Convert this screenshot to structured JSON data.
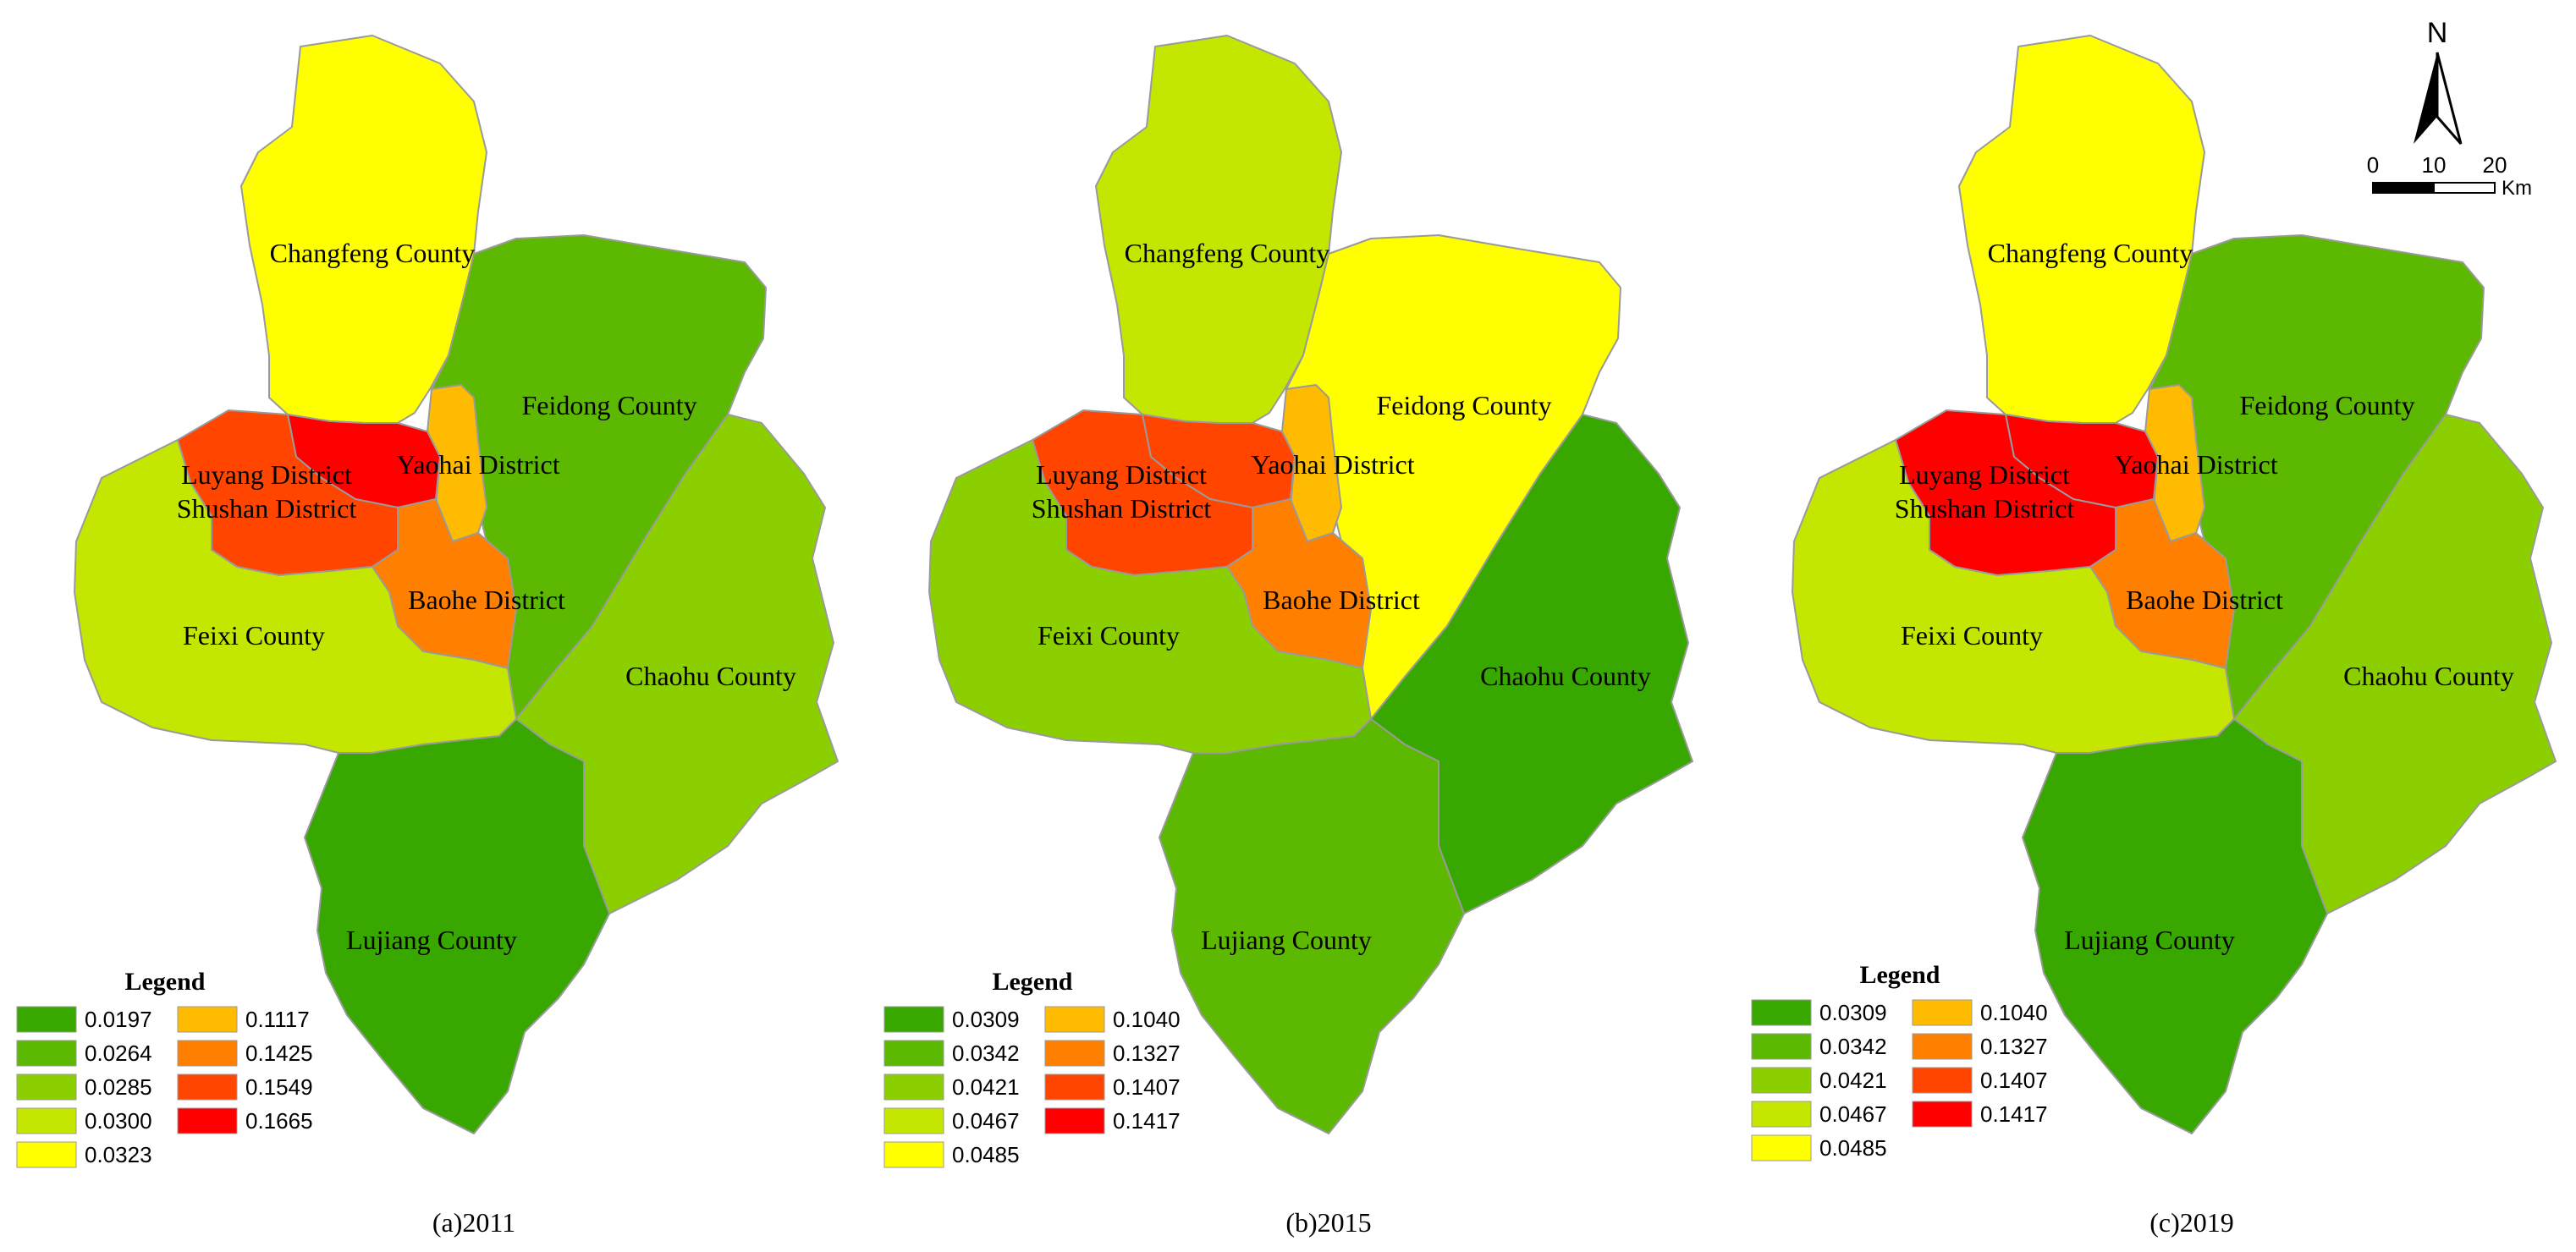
{
  "scale_bar": {
    "north_label": "N",
    "ticks": [
      "0",
      "10",
      "20"
    ],
    "unit": "Km"
  },
  "panels": [
    {
      "caption": "(a)2011",
      "legend_title": "Legend",
      "legend": [
        {
          "label": "0.0197",
          "color": "#38a800"
        },
        {
          "label": "0.0264",
          "color": "#5cb800"
        },
        {
          "label": "0.0285",
          "color": "#8ccf00"
        },
        {
          "label": "0.0300",
          "color": "#c4e600"
        },
        {
          "label": "0.0323",
          "color": "#ffff00"
        },
        {
          "label": "0.1117",
          "color": "#ffbb00"
        },
        {
          "label": "0.1425",
          "color": "#ff8000"
        },
        {
          "label": "0.1549",
          "color": "#ff4500"
        },
        {
          "label": "0.1665",
          "color": "#ff0000"
        }
      ],
      "regions": {
        "changfeng": {
          "name": "Changfeng County",
          "color": "#ffff00"
        },
        "feidong": {
          "name": "Feidong County",
          "color": "#5cb800"
        },
        "luyang": {
          "name": "Luyang District",
          "color": "#ff0000"
        },
        "shushan": {
          "name": "Shushan District",
          "color": "#ff4500"
        },
        "yaohai": {
          "name": "Yaohai District",
          "color": "#ffbb00"
        },
        "baohe": {
          "name": "Baohe District",
          "color": "#ff8000"
        },
        "feixi": {
          "name": "Feixi County",
          "color": "#c4e600"
        },
        "chaohu": {
          "name": "Chaohu County",
          "color": "#8ccf00"
        },
        "lujiang": {
          "name": "Lujiang County",
          "color": "#38a800"
        }
      }
    },
    {
      "caption": "(b)2015",
      "legend_title": "Legend",
      "legend": [
        {
          "label": "0.0309",
          "color": "#38a800"
        },
        {
          "label": "0.0342",
          "color": "#5cb800"
        },
        {
          "label": "0.0421",
          "color": "#8ccf00"
        },
        {
          "label": "0.0467",
          "color": "#c4e600"
        },
        {
          "label": "0.0485",
          "color": "#ffff00"
        },
        {
          "label": "0.1040",
          "color": "#ffbb00"
        },
        {
          "label": "0.1327",
          "color": "#ff8000"
        },
        {
          "label": "0.1407",
          "color": "#ff4500"
        },
        {
          "label": "0.1417",
          "color": "#ff0000"
        }
      ],
      "regions": {
        "changfeng": {
          "name": "Changfeng County",
          "color": "#c4e600"
        },
        "feidong": {
          "name": "Feidong County",
          "color": "#ffff00"
        },
        "luyang": {
          "name": "Luyang District",
          "color": "#ff4500"
        },
        "shushan": {
          "name": "Shushan District",
          "color": "#ff4500"
        },
        "yaohai": {
          "name": "Yaohai District",
          "color": "#ffbb00"
        },
        "baohe": {
          "name": "Baohe District",
          "color": "#ff8000"
        },
        "feixi": {
          "name": "Feixi County",
          "color": "#8ccf00"
        },
        "chaohu": {
          "name": "Chaohu County",
          "color": "#38a800"
        },
        "lujiang": {
          "name": "Lujiang County",
          "color": "#5cb800"
        }
      }
    },
    {
      "caption": "(c)2019",
      "legend_title": "Legend",
      "legend": [
        {
          "label": "0.0309",
          "color": "#38a800"
        },
        {
          "label": "0.0342",
          "color": "#5cb800"
        },
        {
          "label": "0.0421",
          "color": "#8ccf00"
        },
        {
          "label": "0.0467",
          "color": "#c4e600"
        },
        {
          "label": "0.0485",
          "color": "#ffff00"
        },
        {
          "label": "0.1040",
          "color": "#ffbb00"
        },
        {
          "label": "0.1327",
          "color": "#ff8000"
        },
        {
          "label": "0.1407",
          "color": "#ff4500"
        },
        {
          "label": "0.1417",
          "color": "#ff0000"
        }
      ],
      "regions": {
        "changfeng": {
          "name": "Changfeng County",
          "color": "#ffff00"
        },
        "feidong": {
          "name": "Feidong County",
          "color": "#5cb800"
        },
        "luyang": {
          "name": "Luyang District",
          "color": "#ff0000"
        },
        "shushan": {
          "name": "Shushan District",
          "color": "#ff0000"
        },
        "yaohai": {
          "name": "Yaohai District",
          "color": "#ffbb00"
        },
        "baohe": {
          "name": "Baohe District",
          "color": "#ff8000"
        },
        "feixi": {
          "name": "Feixi County",
          "color": "#c4e600"
        },
        "chaohu": {
          "name": "Chaohu County",
          "color": "#8ccf00"
        },
        "lujiang": {
          "name": "Lujiang County",
          "color": "#38a800"
        }
      }
    }
  ]
}
